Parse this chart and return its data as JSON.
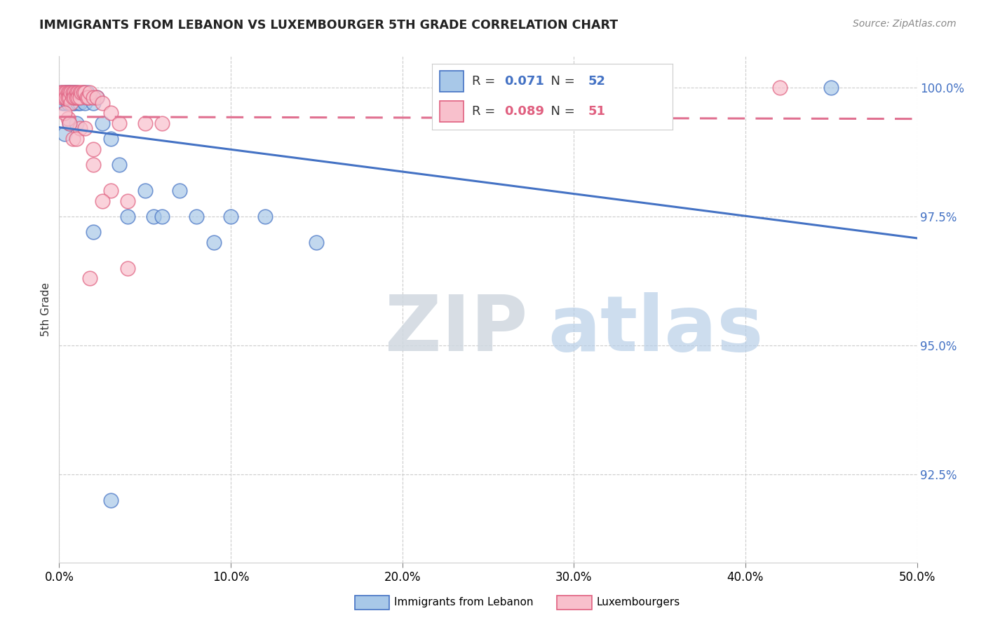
{
  "title": "IMMIGRANTS FROM LEBANON VS LUXEMBOURGER 5TH GRADE CORRELATION CHART",
  "source": "Source: ZipAtlas.com",
  "ylabel_label": "5th Grade",
  "xlim": [
    0.0,
    0.5
  ],
  "ylim": [
    0.908,
    1.006
  ],
  "yticks": [
    0.925,
    0.95,
    0.975,
    1.0
  ],
  "ytick_labels": [
    "92.5%",
    "95.0%",
    "97.5%",
    "100.0%"
  ],
  "xticks": [
    0.0,
    0.1,
    0.2,
    0.3,
    0.4,
    0.5
  ],
  "xtick_labels": [
    "0.0%",
    "10.0%",
    "20.0%",
    "30.0%",
    "40.0%",
    "50.0%"
  ],
  "legend_blue_r": "0.071",
  "legend_blue_n": "52",
  "legend_pink_r": "0.089",
  "legend_pink_n": "51",
  "legend_label_blue": "Immigrants from Lebanon",
  "legend_label_pink": "Luxembourgers",
  "blue_fill": "#a8c8e8",
  "blue_edge": "#4472c4",
  "pink_fill": "#f8c0cc",
  "pink_edge": "#e06080",
  "blue_line_color": "#4472c4",
  "pink_line_color": "#e07090",
  "blue_scatter_x": [
    0.001,
    0.002,
    0.002,
    0.003,
    0.003,
    0.003,
    0.004,
    0.004,
    0.005,
    0.005,
    0.005,
    0.006,
    0.006,
    0.007,
    0.007,
    0.008,
    0.008,
    0.009,
    0.009,
    0.01,
    0.01,
    0.011,
    0.011,
    0.012,
    0.012,
    0.013,
    0.014,
    0.015,
    0.015,
    0.016,
    0.018,
    0.02,
    0.022,
    0.025,
    0.03,
    0.035,
    0.04,
    0.05,
    0.055,
    0.06,
    0.07,
    0.08,
    0.09,
    0.1,
    0.12,
    0.15,
    0.003,
    0.006,
    0.01,
    0.02,
    0.03,
    0.45
  ],
  "blue_scatter_y": [
    0.999,
    0.998,
    0.997,
    0.999,
    0.998,
    0.997,
    0.999,
    0.998,
    0.999,
    0.998,
    0.997,
    0.999,
    0.998,
    0.999,
    0.998,
    0.999,
    0.997,
    0.999,
    0.997,
    0.999,
    0.998,
    0.998,
    0.997,
    0.998,
    0.997,
    0.998,
    0.999,
    0.998,
    0.997,
    0.999,
    0.998,
    0.997,
    0.998,
    0.993,
    0.99,
    0.985,
    0.975,
    0.98,
    0.975,
    0.975,
    0.98,
    0.975,
    0.97,
    0.975,
    0.975,
    0.97,
    0.991,
    0.993,
    0.993,
    0.972,
    0.92,
    1.0
  ],
  "pink_scatter_x": [
    0.001,
    0.002,
    0.002,
    0.003,
    0.003,
    0.004,
    0.004,
    0.005,
    0.005,
    0.006,
    0.006,
    0.007,
    0.007,
    0.008,
    0.008,
    0.009,
    0.009,
    0.01,
    0.01,
    0.011,
    0.011,
    0.012,
    0.012,
    0.013,
    0.014,
    0.015,
    0.016,
    0.017,
    0.018,
    0.02,
    0.022,
    0.025,
    0.03,
    0.035,
    0.04,
    0.05,
    0.06,
    0.005,
    0.008,
    0.012,
    0.02,
    0.03,
    0.003,
    0.006,
    0.01,
    0.015,
    0.02,
    0.025,
    0.04,
    0.42,
    0.018
  ],
  "pink_scatter_y": [
    0.999,
    0.999,
    0.998,
    0.999,
    0.998,
    0.999,
    0.998,
    0.999,
    0.998,
    0.999,
    0.998,
    0.999,
    0.997,
    0.999,
    0.998,
    0.999,
    0.998,
    0.999,
    0.998,
    0.999,
    0.998,
    0.999,
    0.998,
    0.999,
    0.999,
    0.999,
    0.998,
    0.998,
    0.999,
    0.998,
    0.998,
    0.997,
    0.995,
    0.993,
    0.978,
    0.993,
    0.993,
    0.994,
    0.99,
    0.992,
    0.985,
    0.98,
    0.995,
    0.993,
    0.99,
    0.992,
    0.988,
    0.978,
    0.965,
    1.0,
    0.963
  ]
}
